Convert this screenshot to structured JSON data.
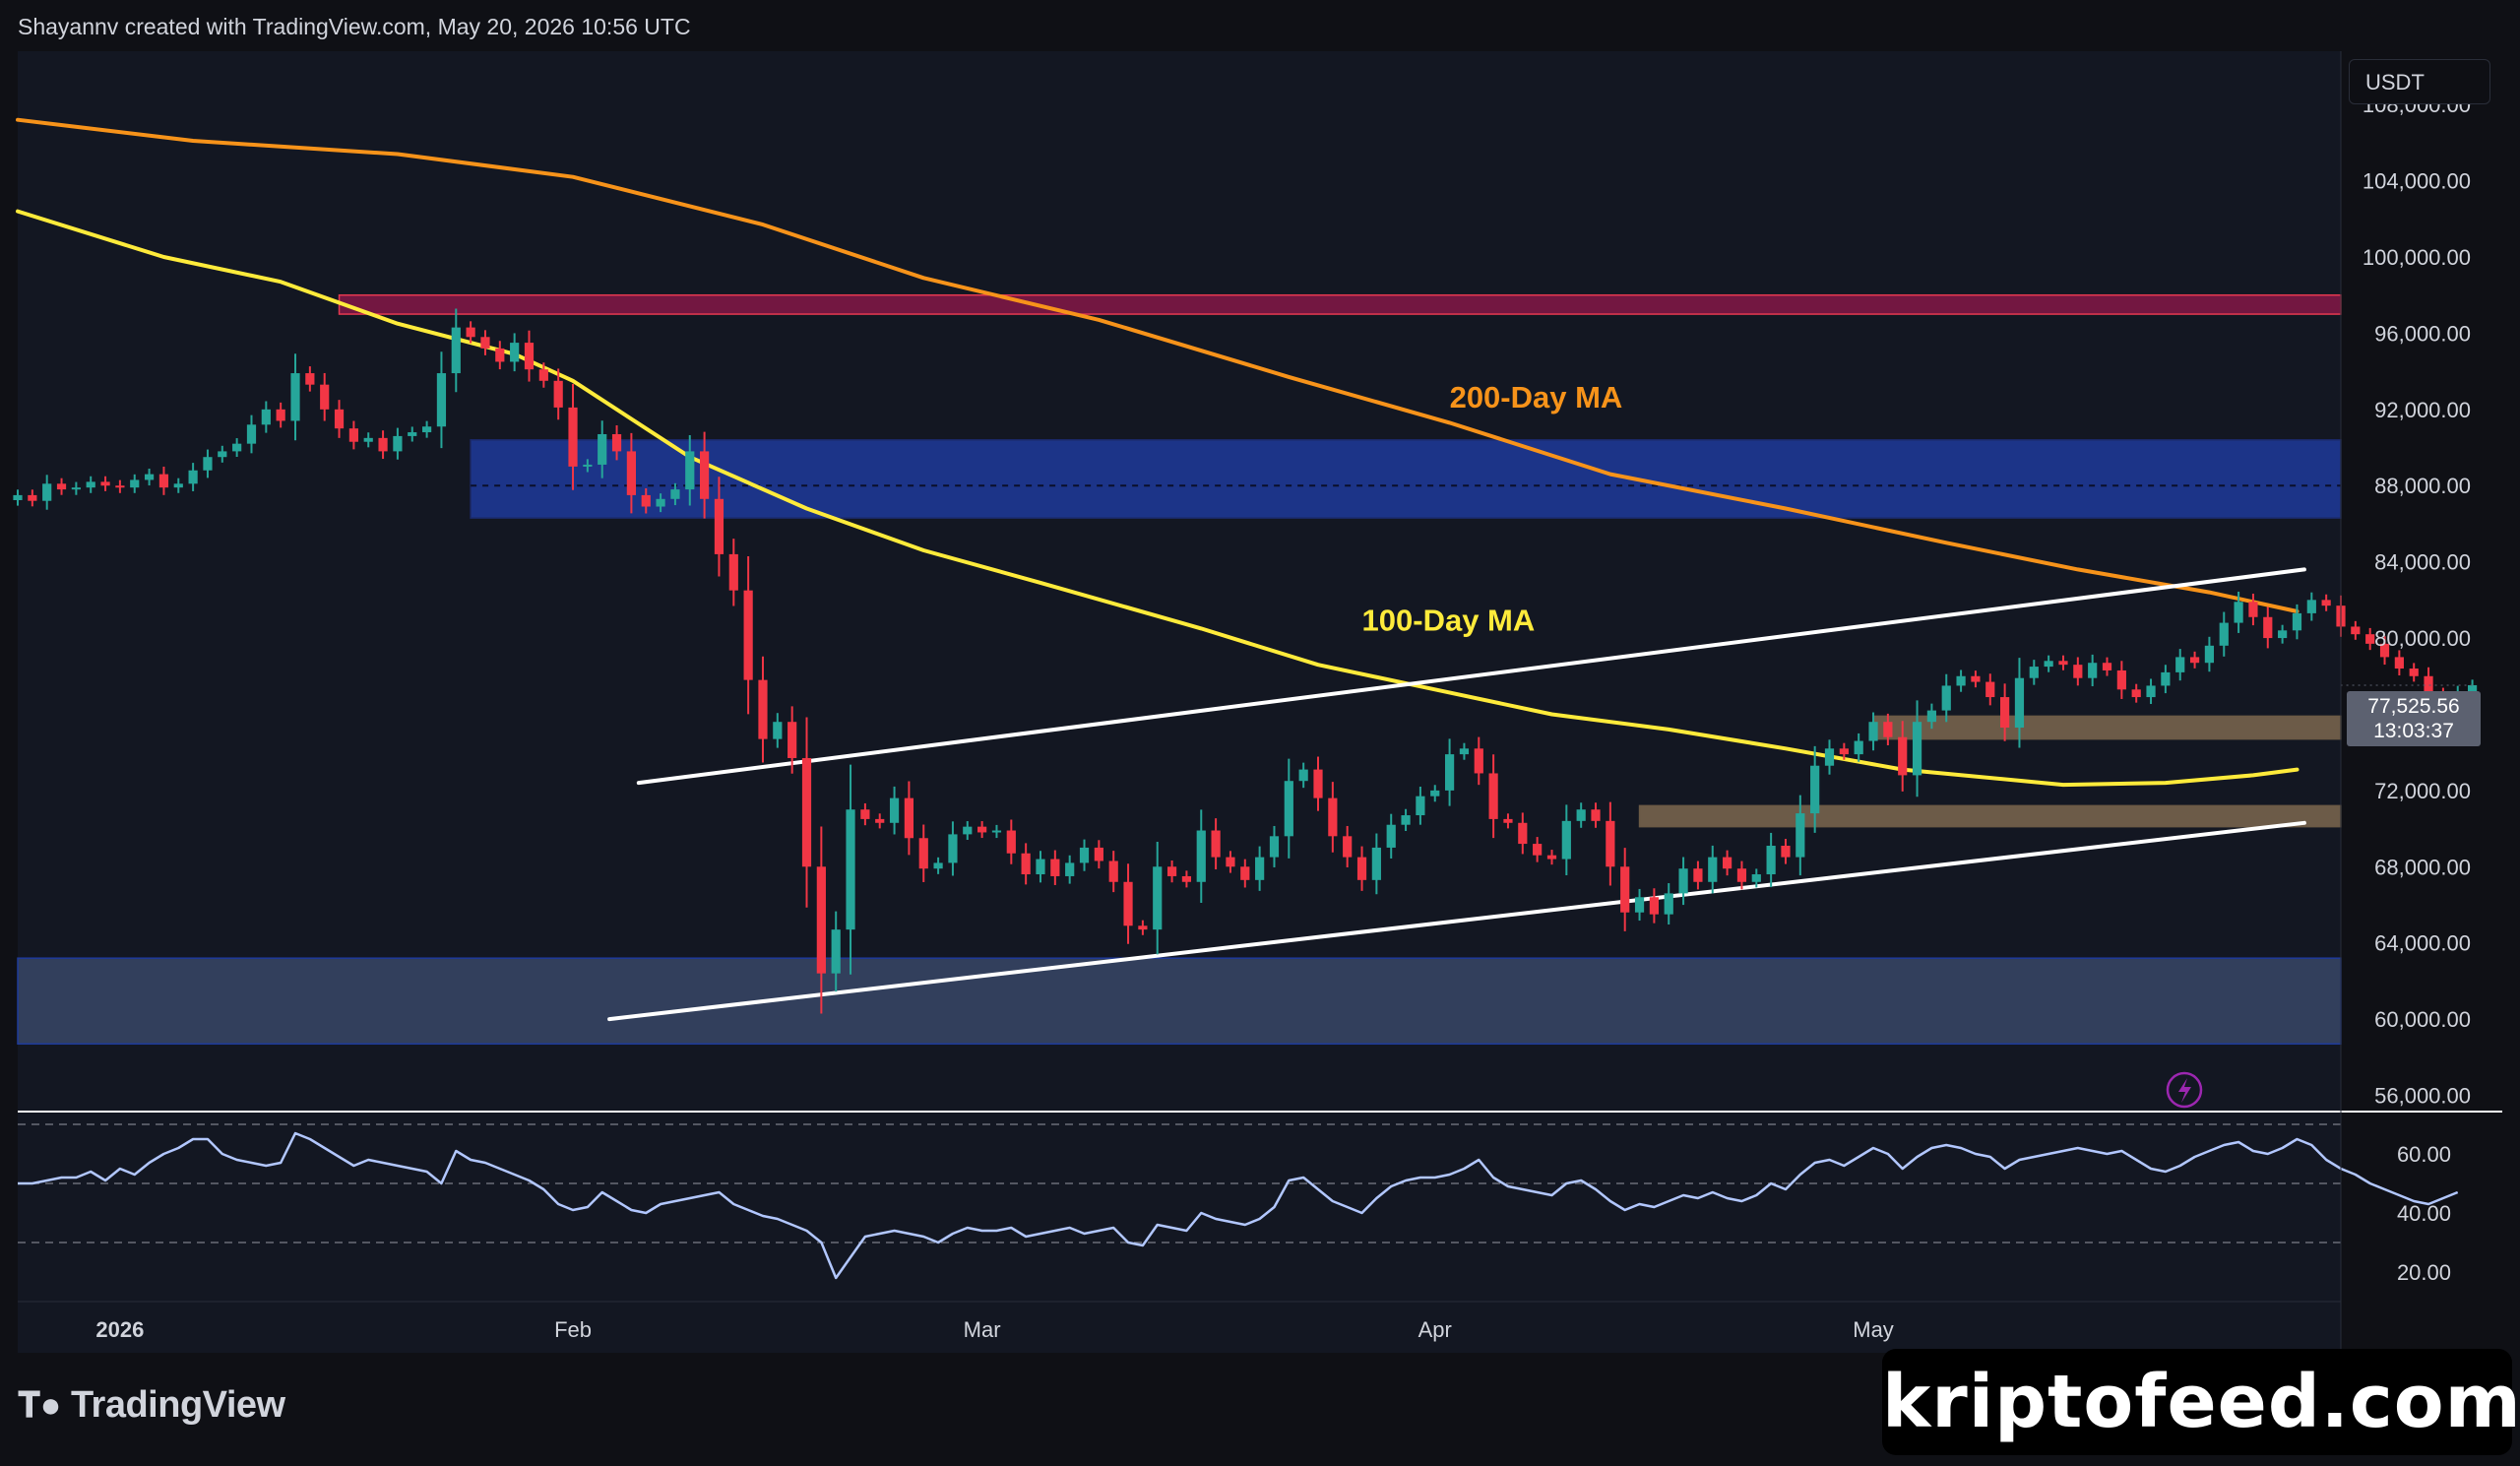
{
  "header": {
    "caption": "Shayannv created with TradingView.com, May 20, 2026 10:56 UTC"
  },
  "currency": "USDT",
  "last_price": {
    "value": "77,525.56",
    "countdown": "13:03:37"
  },
  "brand": {
    "name": "TradingView",
    "watermark": "kriptofeed.com"
  },
  "colors": {
    "background": "#131722",
    "up_candle": "#26a69a",
    "down_candle": "#f23645",
    "ma200": "#f7931a",
    "ma100": "#ffeb3b",
    "channel": "#ffffff",
    "supply_zone": "#c2185b",
    "resistance_zone": "#1e3a9a",
    "demand_zone": "#3b4a6b",
    "support_zone": "#8b7355",
    "rsi": "#b2c7ff"
  },
  "chart_data": {
    "type": "candlestick",
    "x_tick_labels": [
      "2026",
      "Feb",
      "Mar",
      "Apr",
      "May"
    ],
    "y_tick_labels": [
      "108,000.00",
      "104,000.00",
      "100,000.00",
      "96,000.00",
      "92,000.00",
      "88,000.00",
      "84,000.00",
      "80,000.00",
      "76,000.00",
      "72,000.00",
      "68,000.00",
      "64,000.00",
      "60,000.00",
      "56,000.00"
    ],
    "y_ticks": [
      108000,
      104000,
      100000,
      96000,
      92000,
      88000,
      84000,
      80000,
      76000,
      72000,
      68000,
      64000,
      60000,
      56000
    ],
    "ylim": [
      55200,
      110800
    ],
    "x_ticks": [
      {
        "label": "2026",
        "day": 0
      },
      {
        "label": "Feb",
        "day": 31
      },
      {
        "label": "Mar",
        "day": 59
      },
      {
        "label": "Apr",
        "day": 90
      },
      {
        "label": "May",
        "day": 120
      }
    ],
    "days_range": [
      -7,
      152
    ],
    "annotations": [
      {
        "label": "200-Day MA",
        "day": 91,
        "price": 92100,
        "color": "#f7931a"
      },
      {
        "label": "100-Day MA",
        "day": 85,
        "price": 80400,
        "color": "#ffeb3b"
      }
    ],
    "close_series": [
      87500,
      87200,
      88100,
      87800,
      87900,
      88200,
      88000,
      87900,
      88300,
      88600,
      87900,
      88100,
      88800,
      89500,
      89800,
      90200,
      91200,
      92000,
      91400,
      93900,
      93300,
      92000,
      91000,
      90300,
      90500,
      89800,
      90600,
      90800,
      91100,
      93900,
      96300,
      95800,
      95200,
      94500,
      95500,
      94100,
      93500,
      92100,
      89000,
      89100,
      90700,
      89800,
      87500,
      86900,
      87300,
      87800,
      89800,
      87300,
      84400,
      82500,
      77800,
      74700,
      75600,
      73700,
      68000,
      62400,
      64700,
      71000,
      70500,
      70300,
      71600,
      69500,
      67900,
      68200,
      69700,
      70100,
      69800,
      69900,
      68700,
      67600,
      68400,
      67500,
      68200,
      69000,
      68300,
      67200,
      64900,
      64700,
      68000,
      67500,
      67200,
      69900,
      68500,
      68000,
      67300,
      68500,
      69600,
      72500,
      73100,
      71600,
      69600,
      68500,
      67300,
      69000,
      70200,
      70700,
      71700,
      72000,
      73900,
      74200,
      72900,
      70500,
      70300,
      69200,
      68600,
      68400,
      70400,
      71000,
      70400,
      68000,
      65600,
      66400,
      65500,
      66600,
      67900,
      67200,
      68500,
      67900,
      67200,
      67600,
      69100,
      68500,
      70800,
      73300,
      74200,
      73900,
      74600,
      75600,
      74800,
      72800,
      75600,
      76200,
      77500,
      78000,
      77700,
      76900,
      75300,
      77900,
      78500,
      78800,
      78600,
      77900,
      78700,
      78300,
      77300,
      76900,
      77500,
      78200,
      79000,
      78700,
      79600,
      80800,
      81900,
      81100,
      80000,
      80400,
      81300,
      82000,
      81700,
      80600,
      80200,
      79700,
      79000,
      78400,
      78000,
      77100,
      76900,
      77200,
      77525
    ],
    "series": [
      {
        "name": "200-Day MA",
        "points": [
          [
            -7,
            107200
          ],
          [
            5,
            106100
          ],
          [
            19,
            105400
          ],
          [
            31,
            104200
          ],
          [
            44,
            101700
          ],
          [
            55,
            98900
          ],
          [
            67,
            96700
          ],
          [
            80,
            93700
          ],
          [
            91,
            91300
          ],
          [
            102,
            88600
          ],
          [
            114,
            86800
          ],
          [
            125,
            85000
          ],
          [
            134,
            83600
          ],
          [
            143,
            82400
          ],
          [
            149,
            81400
          ]
        ]
      },
      {
        "name": "100-Day MA",
        "points": [
          [
            -7,
            102400
          ],
          [
            3,
            100000
          ],
          [
            11,
            98700
          ],
          [
            19,
            96500
          ],
          [
            27,
            94900
          ],
          [
            31,
            93500
          ],
          [
            39,
            89500
          ],
          [
            47,
            86800
          ],
          [
            55,
            84600
          ],
          [
            63,
            82900
          ],
          [
            74,
            80500
          ],
          [
            82,
            78600
          ],
          [
            90,
            77300
          ],
          [
            98,
            76000
          ],
          [
            106,
            75200
          ],
          [
            114,
            74200
          ],
          [
            122,
            73100
          ],
          [
            133,
            72300
          ],
          [
            140,
            72400
          ],
          [
            146,
            72800
          ],
          [
            149,
            73100
          ]
        ]
      },
      {
        "name": "Channel upper",
        "points": [
          [
            35.5,
            72400
          ],
          [
            149.5,
            83600
          ]
        ]
      },
      {
        "name": "Channel lower",
        "points": [
          [
            33.5,
            60000
          ],
          [
            149.5,
            70300
          ]
        ]
      }
    ],
    "zones": [
      {
        "name": "supply-zone",
        "day_start": 15,
        "price_top": 98000,
        "price_bottom": 97000
      },
      {
        "name": "resistance-zone",
        "day_start": 24,
        "price_top": 90400,
        "price_bottom": 86300
      },
      {
        "name": "demand-zone",
        "day_start": -7,
        "price_top": 63200,
        "price_bottom": 58700
      },
      {
        "name": "support-zone-upper",
        "day_start": 120,
        "price_top": 75900,
        "price_bottom": 74700
      },
      {
        "name": "support-zone-lower",
        "day_start": 104,
        "price_top": 71200,
        "price_bottom": 70100
      }
    ],
    "resistance_midline": 88000,
    "rsi": {
      "y_tick_labels": [
        "60.00",
        "40.00",
        "20.00"
      ],
      "y_ticks": [
        60,
        40,
        20
      ],
      "ylim": [
        10,
        74
      ],
      "levels": [
        70,
        50,
        30
      ],
      "values": [
        50,
        50,
        51,
        52,
        52,
        54,
        51,
        55,
        53,
        57,
        60,
        62,
        65,
        65,
        60,
        58,
        57,
        56,
        57,
        67,
        65,
        62,
        59,
        56,
        58,
        57,
        56,
        55,
        54,
        50,
        61,
        58,
        57,
        55,
        53,
        51,
        48,
        43,
        41,
        42,
        47,
        44,
        41,
        40,
        43,
        44,
        45,
        46,
        47,
        43,
        41,
        39,
        38,
        36,
        34,
        30,
        18,
        25,
        32,
        33,
        34,
        33,
        32,
        30,
        33,
        35,
        34,
        34,
        35,
        32,
        33,
        34,
        35,
        33,
        34,
        35,
        30,
        29,
        36,
        35,
        34,
        40,
        38,
        37,
        36,
        38,
        42,
        51,
        52,
        48,
        44,
        42,
        40,
        45,
        49,
        51,
        52,
        52,
        53,
        55,
        58,
        52,
        49,
        48,
        47,
        46,
        50,
        51,
        48,
        44,
        41,
        43,
        42,
        44,
        46,
        45,
        47,
        45,
        44,
        46,
        50,
        48,
        53,
        57,
        58,
        56,
        59,
        62,
        60,
        55,
        59,
        62,
        63,
        62,
        60,
        59,
        55,
        58,
        59,
        60,
        61,
        62,
        61,
        60,
        61,
        58,
        55,
        54,
        56,
        59,
        61,
        63,
        64,
        61,
        60,
        62,
        65,
        63,
        58,
        55,
        53,
        50,
        48,
        46,
        44,
        43,
        45,
        47
      ]
    }
  }
}
